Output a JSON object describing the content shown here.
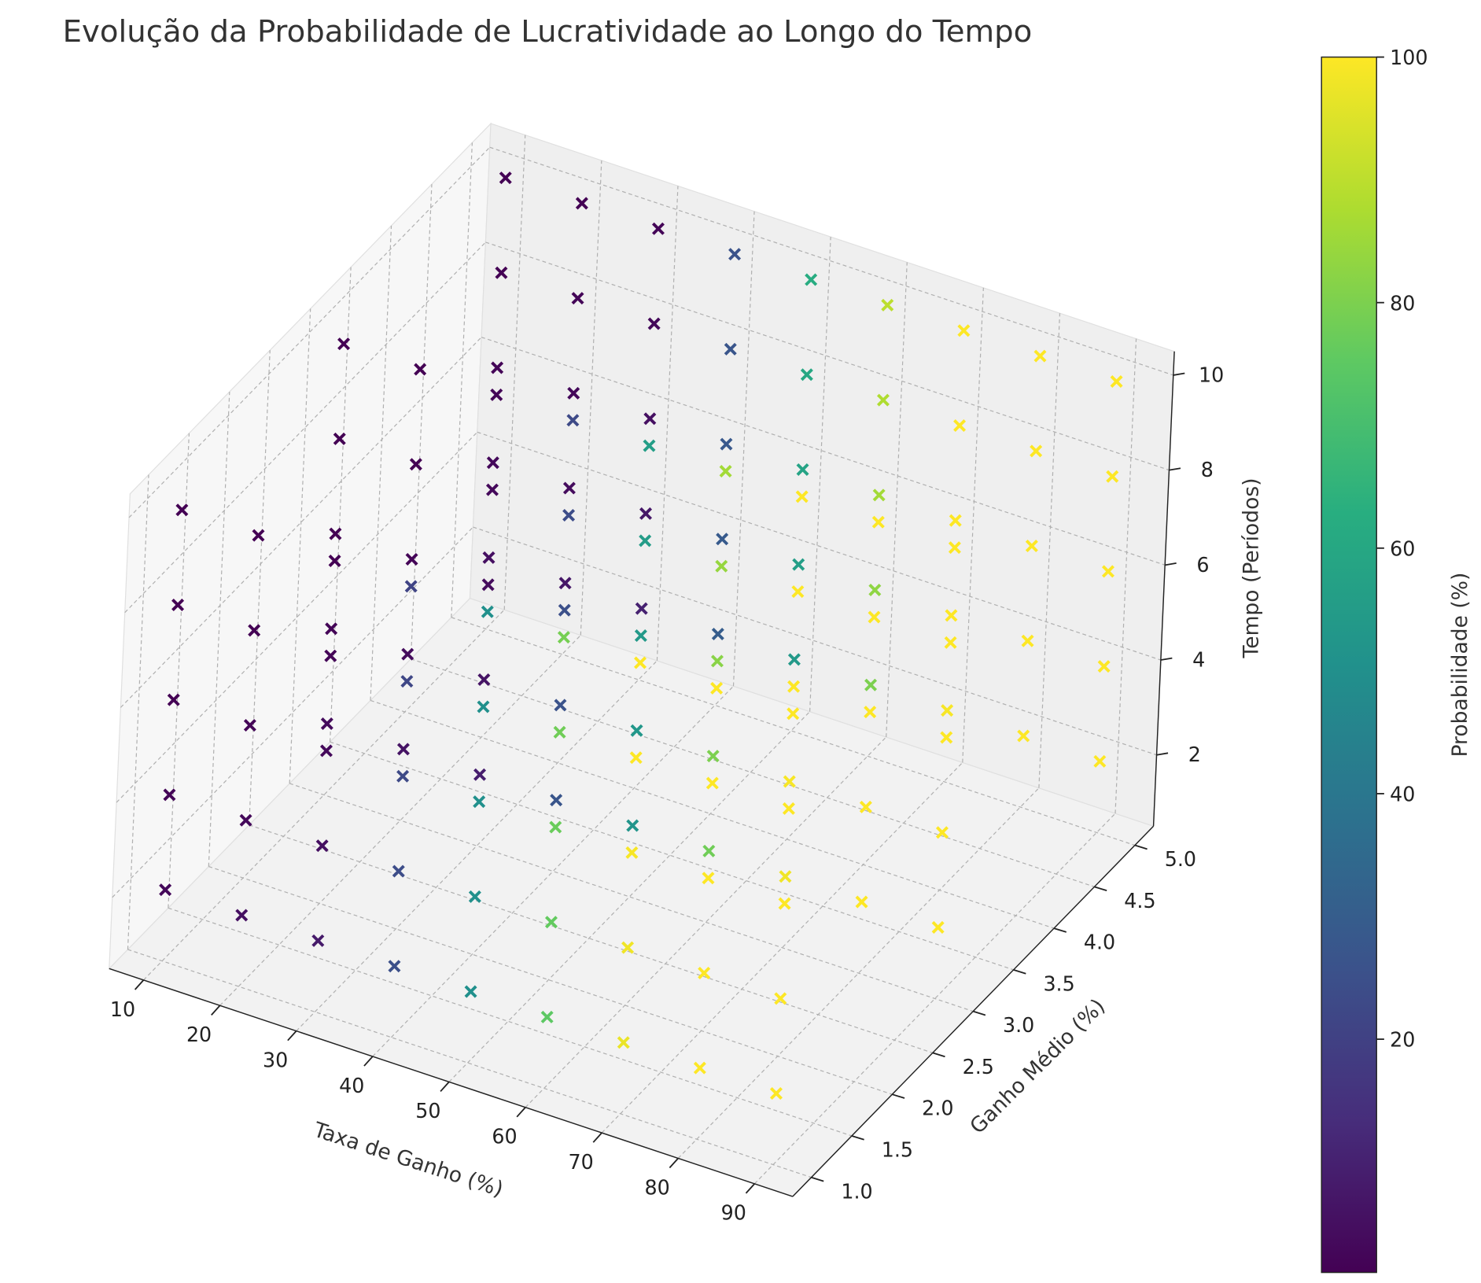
{
  "chart_data": {
    "type": "scatter3d",
    "title": "Evolução da Probabilidade de Lucratividade ao Longo do Tempo",
    "x_label": "Taxa de Ganho (%)",
    "y_label": "Ganho Médio (%)",
    "z_label": "Tempo (Períodos)",
    "colorbar_label": "Probabilidade (%)",
    "colormap": "viridis",
    "marker": "x",
    "grid": true,
    "xlim": [
      5.5,
      95
    ],
    "xticks": [
      10,
      20,
      30,
      40,
      50,
      60,
      70,
      80,
      90
    ],
    "ylim": [
      0.77,
      5.23
    ],
    "yticks": [
      {
        "value": 1,
        "label": "1.0"
      },
      {
        "value": 1.5,
        "label": "1.5"
      },
      {
        "value": 2,
        "label": "2.0"
      },
      {
        "value": 2.5,
        "label": "2.5"
      },
      {
        "value": 3,
        "label": "3.0"
      },
      {
        "value": 3.5,
        "label": "3.5"
      },
      {
        "value": 4,
        "label": "4.0"
      },
      {
        "value": 4.5,
        "label": "4.5"
      },
      {
        "value": 5,
        "label": "5.0"
      }
    ],
    "zlim": [
      0.5,
      10.5
    ],
    "zticks": [
      2,
      4,
      6,
      8,
      10
    ],
    "clim": [
      1,
      100
    ],
    "cticks": [
      20,
      40,
      60,
      80,
      100
    ],
    "x": [
      10,
      10,
      10,
      10,
      10,
      10,
      10,
      10,
      10,
      10,
      10,
      10,
      10,
      10,
      10,
      20,
      20,
      20,
      20,
      20,
      20,
      20,
      20,
      20,
      20,
      20,
      20,
      20,
      20,
      20,
      30,
      30,
      30,
      30,
      30,
      30,
      30,
      30,
      30,
      30,
      30,
      30,
      30,
      30,
      30,
      40,
      40,
      40,
      40,
      40,
      40,
      40,
      40,
      40,
      40,
      40,
      40,
      40,
      40,
      40,
      50,
      50,
      50,
      50,
      50,
      50,
      50,
      50,
      50,
      50,
      50,
      50,
      50,
      50,
      50,
      60,
      60,
      60,
      60,
      60,
      60,
      60,
      60,
      60,
      60,
      60,
      60,
      60,
      60,
      60,
      70,
      70,
      70,
      70,
      70,
      70,
      70,
      70,
      70,
      70,
      70,
      70,
      70,
      70,
      70,
      80,
      80,
      80,
      80,
      80,
      80,
      80,
      80,
      80,
      80,
      80,
      80,
      80,
      80,
      80,
      90,
      90,
      90,
      90,
      90,
      90,
      90,
      90,
      90,
      90,
      90,
      90,
      90,
      90,
      90
    ],
    "y": [
      1,
      1,
      1,
      1,
      1,
      3,
      3,
      3,
      3,
      3,
      5,
      5,
      5,
      5,
      5,
      1,
      1,
      1,
      1,
      1,
      3,
      3,
      3,
      3,
      3,
      5,
      5,
      5,
      5,
      5,
      1,
      1,
      1,
      1,
      1,
      3,
      3,
      3,
      3,
      3,
      5,
      5,
      5,
      5,
      5,
      1,
      1,
      1,
      1,
      1,
      3,
      3,
      3,
      3,
      3,
      5,
      5,
      5,
      5,
      5,
      1,
      1,
      1,
      1,
      1,
      3,
      3,
      3,
      3,
      3,
      5,
      5,
      5,
      5,
      5,
      1,
      1,
      1,
      1,
      1,
      3,
      3,
      3,
      3,
      3,
      5,
      5,
      5,
      5,
      5,
      1,
      1,
      1,
      1,
      1,
      3,
      3,
      3,
      3,
      3,
      5,
      5,
      5,
      5,
      5,
      1,
      1,
      1,
      1,
      1,
      3,
      3,
      3,
      3,
      3,
      5,
      5,
      5,
      5,
      5,
      1,
      1,
      1,
      1,
      1,
      3,
      3,
      3,
      3,
      3,
      5,
      5,
      5,
      5,
      5
    ],
    "z": [
      2,
      4,
      6,
      8,
      10,
      2,
      4,
      6,
      8,
      10,
      2,
      4,
      6,
      8,
      10,
      2,
      4,
      6,
      8,
      10,
      2,
      4,
      6,
      8,
      10,
      2,
      4,
      6,
      8,
      10,
      2,
      4,
      6,
      8,
      10,
      2,
      4,
      6,
      8,
      10,
      2,
      4,
      6,
      8,
      10,
      2,
      4,
      6,
      8,
      10,
      2,
      4,
      6,
      8,
      10,
      2,
      4,
      6,
      8,
      10,
      2,
      4,
      6,
      8,
      10,
      2,
      4,
      6,
      8,
      10,
      2,
      4,
      6,
      8,
      10,
      2,
      4,
      6,
      8,
      10,
      2,
      4,
      6,
      8,
      10,
      2,
      4,
      6,
      8,
      10,
      2,
      4,
      6,
      8,
      10,
      2,
      4,
      6,
      8,
      10,
      2,
      4,
      6,
      8,
      10,
      2,
      4,
      6,
      8,
      10,
      2,
      4,
      6,
      8,
      10,
      2,
      4,
      6,
      8,
      10,
      2,
      4,
      6,
      8,
      10,
      2,
      4,
      6,
      8,
      10,
      2,
      4,
      6,
      8,
      10
    ],
    "values": [
      3,
      2,
      1,
      1,
      1,
      4,
      2,
      1,
      1,
      1,
      5,
      3,
      2,
      1,
      1,
      5,
      3,
      2,
      1,
      1,
      6,
      4,
      2,
      1,
      1,
      7,
      4,
      3,
      2,
      1,
      8,
      5,
      3,
      2,
      1,
      9,
      6,
      4,
      3,
      2,
      10,
      7,
      5,
      3,
      2,
      25,
      24,
      23,
      22,
      21,
      27,
      26,
      25,
      24,
      23,
      30,
      29,
      28,
      27,
      26,
      50,
      50,
      50,
      50,
      50,
      52,
      53,
      54,
      55,
      56,
      54,
      56,
      58,
      60,
      62,
      75,
      76,
      77,
      78,
      79,
      78,
      80,
      82,
      84,
      86,
      80,
      83,
      86,
      88,
      90,
      97,
      98,
      99,
      100,
      100,
      98,
      99,
      100,
      100,
      100,
      99,
      100,
      100,
      100,
      100,
      100,
      100,
      100,
      100,
      100,
      100,
      100,
      100,
      100,
      100,
      100,
      100,
      100,
      100,
      100,
      100,
      100,
      100,
      100,
      100,
      100,
      100,
      100,
      100,
      100,
      100,
      100,
      100,
      100,
      100
    ]
  }
}
